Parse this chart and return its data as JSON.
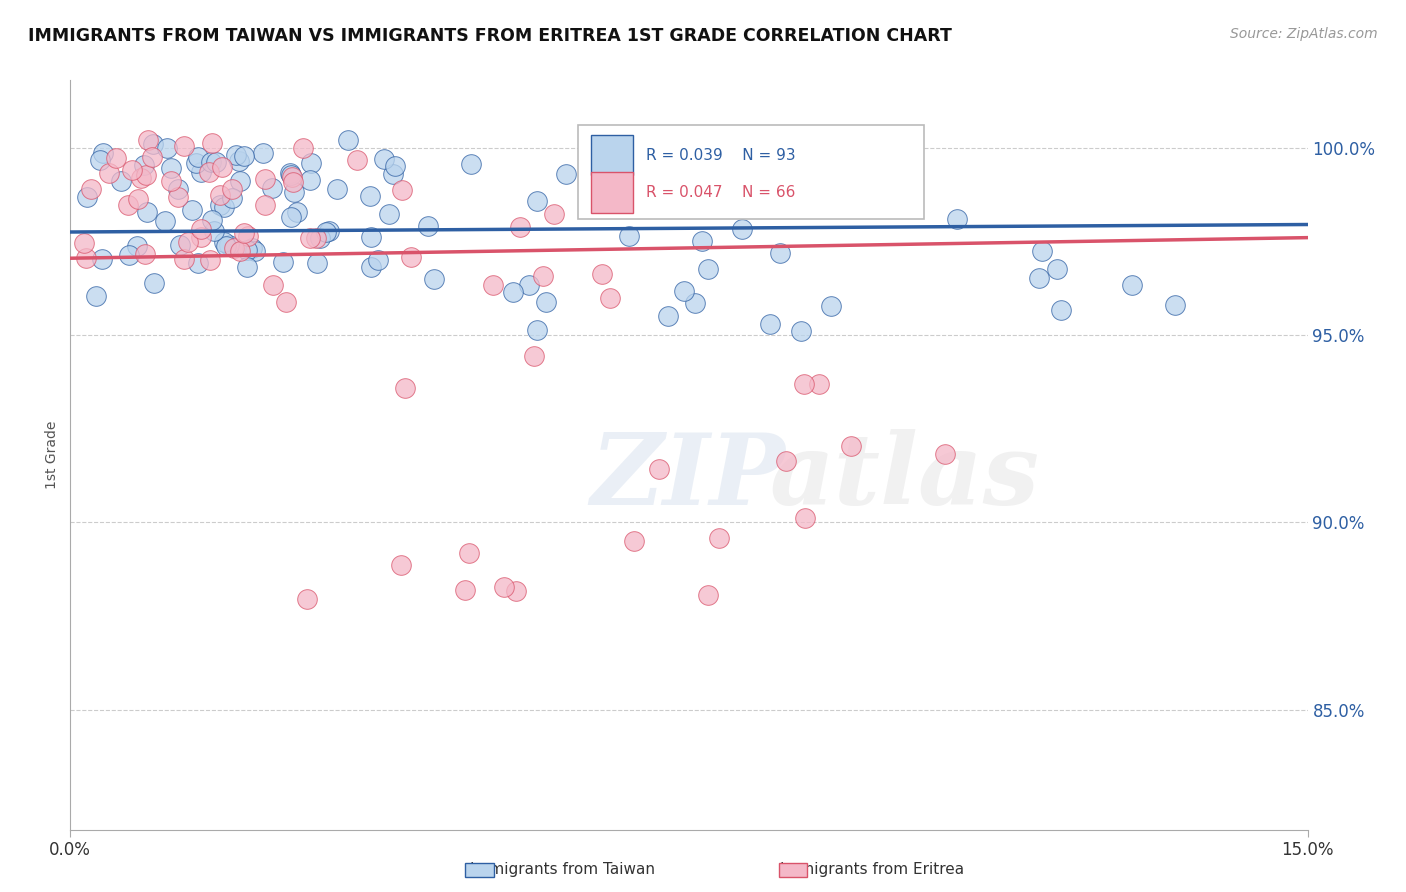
{
  "title": "IMMIGRANTS FROM TAIWAN VS IMMIGRANTS FROM ERITREA 1ST GRADE CORRELATION CHART",
  "source": "Source: ZipAtlas.com",
  "ylabel": "1st Grade",
  "y_tick_labels": [
    "85.0%",
    "90.0%",
    "95.0%",
    "100.0%"
  ],
  "y_tick_values": [
    0.85,
    0.9,
    0.95,
    1.0
  ],
  "xlim": [
    0.0,
    0.15
  ],
  "ylim": [
    0.818,
    1.018
  ],
  "legend_blue": {
    "R": 0.039,
    "N": 93
  },
  "legend_pink": {
    "R": 0.047,
    "N": 66
  },
  "color_blue": "#bad4ed",
  "color_pink": "#f4b8c8",
  "line_color_blue": "#2e5fa3",
  "line_color_pink": "#d9536a",
  "tw_line_y0": 0.9775,
  "tw_line_y1": 0.9795,
  "er_line_y0": 0.9705,
  "er_line_y1": 0.976
}
